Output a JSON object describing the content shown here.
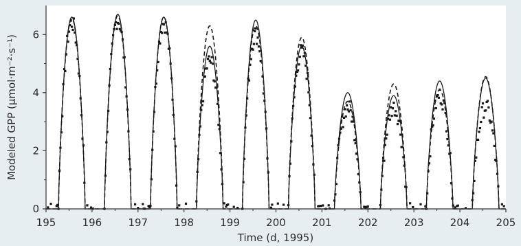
{
  "chart_data": {
    "type": "line",
    "title": "",
    "xlabel": "Time (d, 1995)",
    "ylabel": "Modeled GPP (µmol·m⁻²·s⁻¹)",
    "xlim": [
      195,
      205
    ],
    "ylim": [
      0,
      7
    ],
    "xticks": [
      195,
      196,
      197,
      198,
      199,
      200,
      201,
      202,
      203,
      204,
      205
    ],
    "yticks": [
      0,
      2,
      4,
      6
    ],
    "grid": false,
    "legend": "none",
    "day_window": {
      "start_fraction": 0.27,
      "end_fraction": 0.85
    },
    "daily_peaks": [
      {
        "day": 195,
        "solid": 6.6,
        "dashed": 6.55,
        "observed": 6.4
      },
      {
        "day": 196,
        "solid": 6.7,
        "dashed": 6.65,
        "observed": 6.5
      },
      {
        "day": 197,
        "solid": 6.6,
        "dashed": 6.6,
        "observed": 6.4
      },
      {
        "day": 198,
        "solid": 5.6,
        "dashed": 6.3,
        "observed": 5.1
      },
      {
        "day": 199,
        "solid": 6.5,
        "dashed": 6.3,
        "observed": 6.0
      },
      {
        "day": 200,
        "solid": 5.6,
        "dashed": 5.9,
        "observed": 5.4
      },
      {
        "day": 201,
        "solid": 4.0,
        "dashed": 3.7,
        "observed": 3.5
      },
      {
        "day": 202,
        "solid": 3.9,
        "dashed": 4.3,
        "observed": 3.5
      },
      {
        "day": 203,
        "solid": 4.4,
        "dashed": 4.1,
        "observed": 3.9
      },
      {
        "day": 204,
        "solid": 4.5,
        "dashed": 4.55,
        "observed": 3.5
      }
    ],
    "series": [
      {
        "style": "solid"
      },
      {
        "style": "dashed"
      },
      {
        "style": "points"
      }
    ]
  },
  "colors": {
    "background": "#e6eef2",
    "plot_bg": "#ffffff",
    "ink": "#1a1a1a",
    "axis": "#333333"
  }
}
